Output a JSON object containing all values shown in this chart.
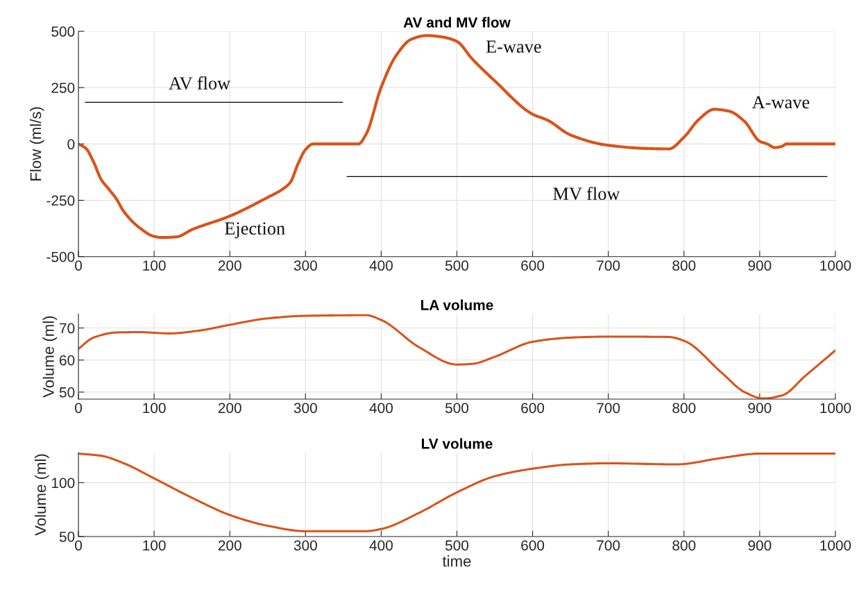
{
  "chart_data": [
    {
      "type": "line",
      "title": "AV and MV flow",
      "ylabel": "Flow (ml/s)",
      "xlim": [
        0,
        1000
      ],
      "xticks": [
        0,
        100,
        200,
        300,
        400,
        500,
        600,
        700,
        800,
        900,
        1000
      ],
      "ylim": [
        -500,
        500
      ],
      "yticks": [
        -500,
        -250,
        0,
        250,
        500
      ],
      "grid": true,
      "series": [
        {
          "color": "#d95319",
          "x": [
            0,
            10,
            20,
            30,
            40,
            50,
            60,
            80,
            100,
            110,
            130,
            150,
            200,
            250,
            270,
            280,
            290,
            300,
            310,
            370,
            380,
            400,
            420,
            440,
            460,
            480,
            500,
            520,
            550,
            600,
            620,
            650,
            700,
            750,
            780,
            800,
            820,
            840,
            860,
            880,
            900,
            910,
            920,
            930,
            935,
            1000
          ],
          "values": [
            0,
            -20,
            -80,
            -157,
            -200,
            -243,
            -300,
            -370,
            -410,
            -415,
            -412,
            -380,
            -320,
            -237,
            -200,
            -170,
            -89,
            -25,
            0,
            0,
            43,
            252,
            394,
            465,
            481,
            475,
            455,
            378,
            280,
            132,
            105,
            40,
            -6,
            -20,
            -22,
            30,
            110,
            154,
            145,
            100,
            12,
            0,
            -16,
            -10,
            0,
            0
          ]
        },
        {
          "color": "#000000",
          "x": [
            9,
            349
          ],
          "values": [
            185,
            185
          ]
        },
        {
          "color": "#000000",
          "x": [
            355,
            989
          ],
          "values": [
            -145,
            -145
          ]
        }
      ],
      "annotations": [
        "AV flow",
        "Ejection",
        "E-wave",
        "MV flow",
        "A-wave"
      ]
    },
    {
      "type": "line",
      "title": "LA volume",
      "ylabel": "Volume (ml)",
      "xlim": [
        0,
        1000
      ],
      "xticks": [
        0,
        100,
        200,
        300,
        400,
        500,
        600,
        700,
        800,
        900,
        1000
      ],
      "ylim": [
        47.8,
        74.4
      ],
      "yticks": [
        50,
        60,
        70
      ],
      "grid": true,
      "series": [
        {
          "color": "#d95319",
          "x": [
            0,
            20,
            50,
            80,
            120,
            160,
            200,
            250,
            300,
            380,
            400,
            450,
            500,
            520,
            550,
            600,
            650,
            700,
            780,
            800,
            850,
            880,
            905,
            930,
            960,
            1000
          ],
          "values": [
            63.5,
            67,
            68.6,
            68.7,
            68.3,
            69.2,
            71,
            73,
            73.8,
            74,
            72.5,
            64,
            58.6,
            58.8,
            61,
            65.7,
            67,
            67.3,
            67.2,
            66,
            56,
            50,
            48,
            49,
            55,
            63
          ]
        }
      ]
    },
    {
      "type": "line",
      "title": "LV volume",
      "xlabel": "time",
      "ylabel": "Volume (ml)",
      "xlim": [
        0,
        1000
      ],
      "xticks": [
        0,
        100,
        200,
        300,
        400,
        500,
        600,
        700,
        800,
        900,
        1000
      ],
      "ylim": [
        50,
        128
      ],
      "yticks": [
        50,
        100
      ],
      "grid": true,
      "series": [
        {
          "color": "#d95319",
          "x": [
            0,
            30,
            60,
            100,
            150,
            200,
            250,
            300,
            380,
            400,
            450,
            500,
            550,
            600,
            650,
            700,
            790,
            850,
            900,
            1000
          ],
          "values": [
            127,
            125,
            118,
            104,
            86,
            70,
            60,
            55,
            55,
            57,
            72,
            91,
            106,
            113,
            117,
            118,
            117,
            123,
            127,
            127
          ]
        }
      ]
    }
  ]
}
